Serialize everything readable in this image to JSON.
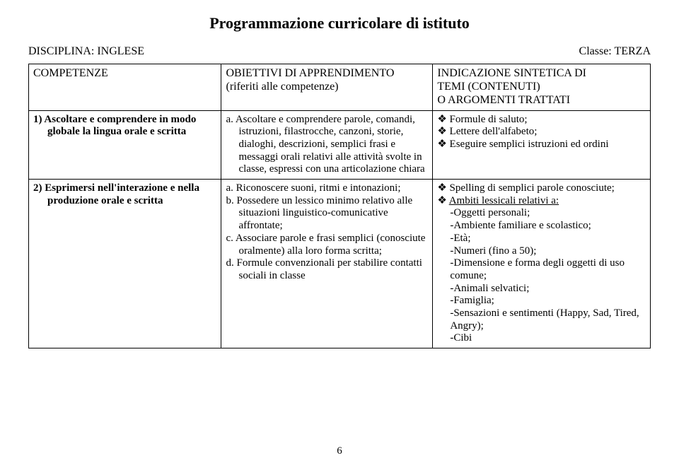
{
  "title": "Programmazione curricolare di istituto",
  "discipline_label": "DISCIPLINA: INGLESE",
  "class_label": "Classe: TERZA",
  "headers": {
    "col1": "COMPETENZE",
    "col2_line1": "OBIETTIVI DI APPRENDIMENTO",
    "col2_line2": "(riferiti alle competenze)",
    "col3_line1": "INDICAZIONE SINTETICA DI",
    "col3_line2": "TEMI (CONTENUTI)",
    "col3_line3": "O ARGOMENTI TRATTATI"
  },
  "row1": {
    "competenza": "1) Ascoltare e comprendere in modo globale la lingua orale e scritta",
    "obiettivo_a": "a. Ascoltare e comprendere parole, comandi, istruzioni, filastrocche, canzoni, storie, dialoghi, descrizioni, semplici frasi e messaggi orali relativi alle attività svolte in classe, espressi con una articolazione chiara",
    "temi": {
      "b1": "Formule di saluto;",
      "b2": "Lettere dell'alfabeto;",
      "b3": "Eseguire semplici istruzioni ed ordini"
    }
  },
  "row2": {
    "competenza": "2) Esprimersi nell'interazione e nella produzione orale e scritta",
    "obiettivi": {
      "a": "a. Riconoscere suoni, ritmi e intonazioni;",
      "b": "b. Possedere un lessico minimo relativo alle situazioni linguistico-comunicative affrontate;",
      "c": "c. Associare parole e frasi semplici (conosciute oralmente) alla loro forma scritta;",
      "d": "d. Formule convenzionali per stabilire contatti sociali in classe"
    },
    "temi": {
      "b1": "Spelling di semplici parole conosciute;",
      "b2": "Ambiti lessicali relativi a:",
      "s1": "-Oggetti personali;",
      "s2": "-Ambiente familiare e scolastico;",
      "s3": "-Età;",
      "s4": "-Numeri (fino a 50);",
      "s5": "-Dimensione e forma degli oggetti di uso comune;",
      "s6": "-Animali selvatici;",
      "s7": "-Famiglia;",
      "s8": "-Sensazioni e sentimenti (Happy, Sad, Tired, Angry);",
      "s9": "-Cibi"
    }
  },
  "page_number": "6"
}
